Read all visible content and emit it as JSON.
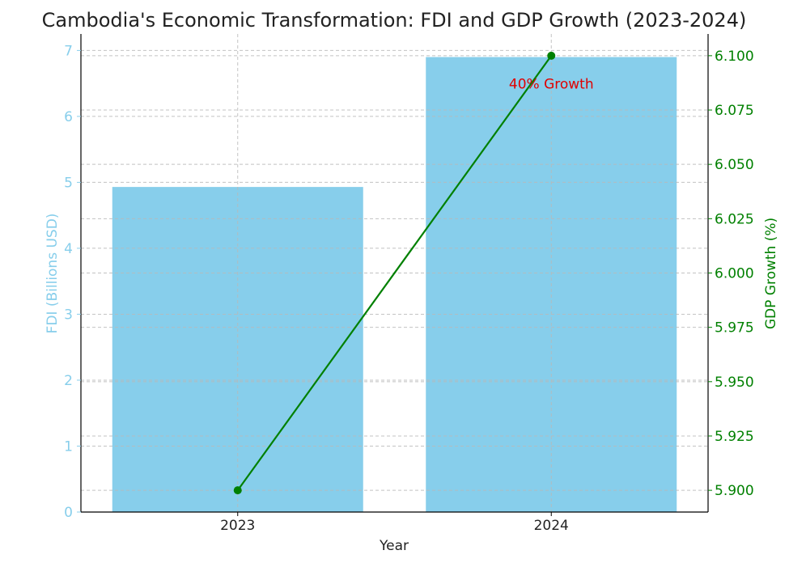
{
  "chart_data": {
    "type": "bar",
    "title": "Cambodia's Economic Transformation: FDI and GDP Growth (2023-2024)",
    "xlabel": "Year",
    "categories": [
      "2023",
      "2024"
    ],
    "bar_series": {
      "name": "FDI (Billions USD)",
      "values": [
        4.93,
        6.9
      ],
      "color": "#87ceeb"
    },
    "line_series": {
      "name": "GDP Growth (%)",
      "values": [
        5.9,
        6.1
      ],
      "color": "#008000"
    },
    "y_left": {
      "label": "FDI (Billions USD)",
      "ylim": [
        0,
        7.25
      ],
      "ticks": [
        0,
        1,
        2,
        3,
        4,
        5,
        6,
        7
      ],
      "tick_labels": [
        "0",
        "1",
        "2",
        "3",
        "4",
        "5",
        "6",
        "7"
      ],
      "color": "#87ceeb"
    },
    "y_right": {
      "label": "GDP Growth (%)",
      "ylim": [
        5.89,
        6.11
      ],
      "ticks": [
        5.9,
        5.925,
        5.95,
        5.975,
        6.0,
        6.025,
        6.05,
        6.075,
        6.1
      ],
      "tick_labels": [
        "5.900",
        "5.925",
        "5.950",
        "5.975",
        "6.000",
        "6.025",
        "6.050",
        "6.075",
        "6.100"
      ],
      "color": "#008000"
    },
    "annotation": {
      "text": "40% Growth",
      "color": "#e00000",
      "x": "2024",
      "y": 6.09
    },
    "grid": true
  }
}
